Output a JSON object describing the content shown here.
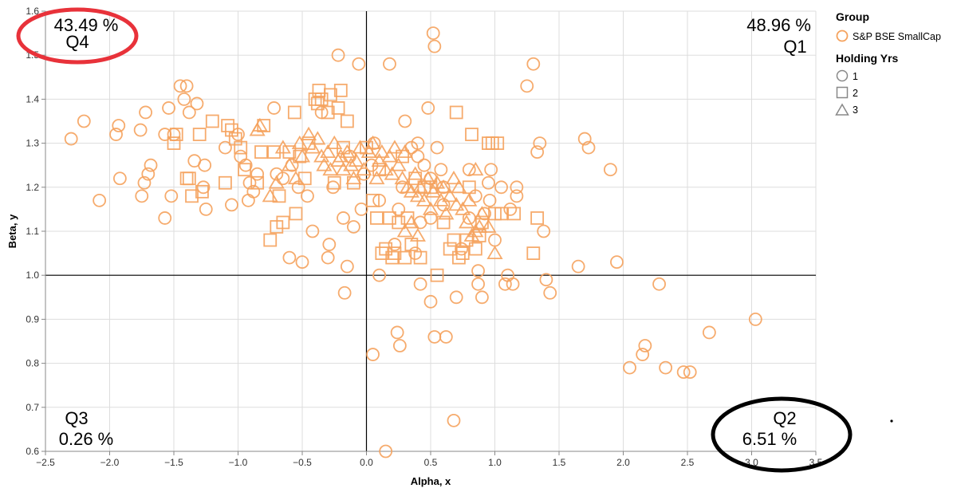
{
  "chart_data": {
    "type": "scatter",
    "title": "",
    "xlabel": "Alpha, x",
    "ylabel": "Beta, y",
    "xlim": [
      -2.5,
      3.5
    ],
    "ylim": [
      0.6,
      1.6
    ],
    "xticks": [
      "−2.5",
      "−2.0",
      "−1.5",
      "−1.0",
      "−0.5",
      "0.0",
      "0.5",
      "1.0",
      "1.5",
      "2.0",
      "2.5",
      "3.0",
      "3.5"
    ],
    "xtick_values": [
      -2.5,
      -2.0,
      -1.5,
      -1.0,
      -0.5,
      0.0,
      0.5,
      1.0,
      1.5,
      2.0,
      2.5,
      3.0,
      3.5
    ],
    "yticks": [
      "0.6",
      "0.7",
      "0.8",
      "0.9",
      "1.0",
      "1.1",
      "1.2",
      "1.3",
      "1.4",
      "1.5",
      "1.6"
    ],
    "ytick_values": [
      0.6,
      0.7,
      0.8,
      0.9,
      1.0,
      1.1,
      1.2,
      1.3,
      1.4,
      1.5,
      1.6
    ],
    "grid": true,
    "reference_lines": {
      "x": 0,
      "y": 1.0
    },
    "marker_color": "#f5a25d",
    "legend": {
      "placement": "right",
      "group_title": "Group",
      "group_items": [
        {
          "label": "S&P BSE SmallCap",
          "shape": "circle"
        }
      ],
      "holding_title": "Holding Yrs",
      "holding_items": [
        {
          "label": "1",
          "shape": "circle"
        },
        {
          "label": "2",
          "shape": "square"
        },
        {
          "label": "3",
          "shape": "triangle"
        }
      ]
    },
    "annotations": [
      {
        "quadrant": "Q1",
        "label": "Q1",
        "value": "48.96 %"
      },
      {
        "quadrant": "Q2",
        "label": "Q2",
        "value": "6.51 %"
      },
      {
        "quadrant": "Q3",
        "label": "Q3",
        "value": "0.26 %"
      },
      {
        "quadrant": "Q4",
        "label": "Q4",
        "value": "43.49 %"
      }
    ],
    "highlight_ellipses": [
      {
        "quadrant": "Q4",
        "color": "#e8323a"
      },
      {
        "quadrant": "Q2",
        "color": "#000000"
      }
    ],
    "series": [
      {
        "holding_yrs": "1",
        "shape": "circle",
        "points": [
          [
            -2.3,
            1.31
          ],
          [
            -2.2,
            1.35
          ],
          [
            -2.08,
            1.17
          ],
          [
            -1.95,
            1.32
          ],
          [
            -1.93,
            1.34
          ],
          [
            -1.92,
            1.22
          ],
          [
            -1.76,
            1.33
          ],
          [
            -1.75,
            1.18
          ],
          [
            -1.73,
            1.21
          ],
          [
            -1.72,
            1.37
          ],
          [
            -1.7,
            1.23
          ],
          [
            -1.68,
            1.25
          ],
          [
            -1.57,
            1.13
          ],
          [
            -1.57,
            1.32
          ],
          [
            -1.54,
            1.38
          ],
          [
            -1.52,
            1.18
          ],
          [
            -1.5,
            1.32
          ],
          [
            -1.45,
            1.43
          ],
          [
            -1.42,
            1.4
          ],
          [
            -1.4,
            1.43
          ],
          [
            -1.38,
            1.37
          ],
          [
            -1.34,
            1.26
          ],
          [
            -1.32,
            1.39
          ],
          [
            -1.27,
            1.2
          ],
          [
            -1.26,
            1.25
          ],
          [
            -1.25,
            1.15
          ],
          [
            -1.1,
            1.29
          ],
          [
            -1.05,
            1.16
          ],
          [
            -1.0,
            1.32
          ],
          [
            -0.98,
            1.27
          ],
          [
            -0.94,
            1.25
          ],
          [
            -0.92,
            1.17
          ],
          [
            -0.91,
            1.21
          ],
          [
            -0.88,
            1.19
          ],
          [
            -0.85,
            1.23
          ],
          [
            -0.72,
            1.38
          ],
          [
            -0.7,
            1.23
          ],
          [
            -0.65,
            1.22
          ],
          [
            -0.6,
            1.04
          ],
          [
            -0.58,
            1.25
          ],
          [
            -0.53,
            1.2
          ],
          [
            -0.5,
            1.03
          ],
          [
            -0.46,
            1.18
          ],
          [
            -0.42,
            1.1
          ],
          [
            -0.35,
            1.37
          ],
          [
            -0.3,
            1.04
          ],
          [
            -0.29,
            1.07
          ],
          [
            -0.26,
            1.2
          ],
          [
            -0.22,
            1.5
          ],
          [
            -0.18,
            1.13
          ],
          [
            -0.17,
            0.96
          ],
          [
            -0.15,
            1.02
          ],
          [
            -0.13,
            1.27
          ],
          [
            -0.1,
            1.11
          ],
          [
            -0.06,
            1.48
          ],
          [
            -0.04,
            1.15
          ],
          [
            -0.02,
            1.23
          ],
          [
            0.04,
            1.25
          ],
          [
            0.05,
            0.82
          ],
          [
            0.06,
            1.3
          ],
          [
            0.1,
            1.17
          ],
          [
            0.1,
            1.0
          ],
          [
            0.15,
            0.6
          ],
          [
            0.18,
            1.48
          ],
          [
            0.22,
            1.07
          ],
          [
            0.24,
            0.87
          ],
          [
            0.25,
            1.15
          ],
          [
            0.26,
            0.84
          ],
          [
            0.28,
            1.2
          ],
          [
            0.3,
            1.35
          ],
          [
            0.35,
            1.29
          ],
          [
            0.38,
            1.05
          ],
          [
            0.4,
            1.27
          ],
          [
            0.4,
            1.3
          ],
          [
            0.42,
            1.12
          ],
          [
            0.42,
            0.98
          ],
          [
            0.45,
            1.25
          ],
          [
            0.48,
            1.38
          ],
          [
            0.5,
            1.13
          ],
          [
            0.5,
            1.22
          ],
          [
            0.5,
            0.94
          ],
          [
            0.52,
            1.55
          ],
          [
            0.53,
            1.52
          ],
          [
            0.53,
            0.86
          ],
          [
            0.55,
            1.29
          ],
          [
            0.58,
            1.24
          ],
          [
            0.6,
            1.2
          ],
          [
            0.6,
            1.16
          ],
          [
            0.62,
            0.86
          ],
          [
            0.68,
            0.67
          ],
          [
            0.7,
            0.95
          ],
          [
            0.74,
            1.06
          ],
          [
            0.8,
            1.13
          ],
          [
            0.8,
            1.24
          ],
          [
            0.85,
            1.18
          ],
          [
            0.87,
            1.01
          ],
          [
            0.87,
            0.98
          ],
          [
            0.9,
            0.95
          ],
          [
            0.92,
            1.14
          ],
          [
            0.95,
            1.21
          ],
          [
            0.96,
            1.17
          ],
          [
            0.97,
            1.24
          ],
          [
            1.0,
            1.08
          ],
          [
            1.05,
            1.2
          ],
          [
            1.08,
            0.98
          ],
          [
            1.1,
            1.0
          ],
          [
            1.12,
            1.15
          ],
          [
            1.14,
            0.98
          ],
          [
            1.17,
            1.18
          ],
          [
            1.17,
            1.2
          ],
          [
            1.25,
            1.43
          ],
          [
            1.3,
            1.48
          ],
          [
            1.33,
            1.28
          ],
          [
            1.35,
            1.3
          ],
          [
            1.38,
            1.1
          ],
          [
            1.4,
            0.99
          ],
          [
            1.43,
            0.96
          ],
          [
            1.65,
            1.02
          ],
          [
            1.7,
            1.31
          ],
          [
            1.73,
            1.29
          ],
          [
            1.9,
            1.24
          ],
          [
            1.95,
            1.03
          ],
          [
            2.05,
            0.79
          ],
          [
            2.15,
            0.82
          ],
          [
            2.17,
            0.84
          ],
          [
            2.28,
            0.98
          ],
          [
            2.33,
            0.79
          ],
          [
            2.47,
            0.78
          ],
          [
            2.52,
            0.78
          ],
          [
            2.67,
            0.87
          ],
          [
            3.03,
            0.9
          ]
        ]
      },
      {
        "holding_yrs": "2",
        "shape": "square",
        "points": [
          [
            -1.5,
            1.3
          ],
          [
            -1.48,
            1.32
          ],
          [
            -1.4,
            1.22
          ],
          [
            -1.38,
            1.22
          ],
          [
            -1.36,
            1.18
          ],
          [
            -1.3,
            1.32
          ],
          [
            -1.28,
            1.19
          ],
          [
            -1.2,
            1.35
          ],
          [
            -1.1,
            1.21
          ],
          [
            -1.08,
            1.34
          ],
          [
            -1.05,
            1.33
          ],
          [
            -1.02,
            1.31
          ],
          [
            -0.98,
            1.29
          ],
          [
            -0.95,
            1.24
          ],
          [
            -0.85,
            1.21
          ],
          [
            -0.82,
            1.28
          ],
          [
            -0.8,
            1.34
          ],
          [
            -0.75,
            1.08
          ],
          [
            -0.72,
            1.28
          ],
          [
            -0.7,
            1.11
          ],
          [
            -0.68,
            1.18
          ],
          [
            -0.65,
            1.12
          ],
          [
            -0.6,
            1.28
          ],
          [
            -0.56,
            1.37
          ],
          [
            -0.55,
            1.14
          ],
          [
            -0.52,
            1.27
          ],
          [
            -0.48,
            1.22
          ],
          [
            -0.45,
            1.3
          ],
          [
            -0.4,
            1.4
          ],
          [
            -0.38,
            1.39
          ],
          [
            -0.37,
            1.42
          ],
          [
            -0.35,
            1.4
          ],
          [
            -0.3,
            1.37
          ],
          [
            -0.28,
            1.41
          ],
          [
            -0.25,
            1.21
          ],
          [
            -0.22,
            1.38
          ],
          [
            -0.2,
            1.42
          ],
          [
            -0.18,
            1.29
          ],
          [
            -0.15,
            1.35
          ],
          [
            -0.1,
            1.21
          ],
          [
            0.0,
            1.29
          ],
          [
            0.05,
            1.17
          ],
          [
            0.08,
            1.13
          ],
          [
            0.1,
            1.24
          ],
          [
            0.12,
            1.05
          ],
          [
            0.15,
            1.06
          ],
          [
            0.18,
            1.13
          ],
          [
            0.2,
            1.04
          ],
          [
            0.22,
            1.05
          ],
          [
            0.25,
            1.12
          ],
          [
            0.28,
            1.27
          ],
          [
            0.3,
            1.04
          ],
          [
            0.32,
            1.13
          ],
          [
            0.35,
            1.07
          ],
          [
            0.38,
            1.22
          ],
          [
            0.42,
            1.04
          ],
          [
            0.45,
            1.2
          ],
          [
            0.5,
            1.2
          ],
          [
            0.55,
            1.0
          ],
          [
            0.6,
            1.12
          ],
          [
            0.65,
            1.06
          ],
          [
            0.68,
            1.08
          ],
          [
            0.72,
            1.04
          ],
          [
            0.75,
            1.05
          ],
          [
            0.78,
            1.08
          ],
          [
            0.8,
            1.2
          ],
          [
            0.82,
            1.32
          ],
          [
            0.85,
            1.06
          ],
          [
            0.88,
            1.09
          ],
          [
            0.9,
            1.12
          ],
          [
            0.95,
            1.3
          ],
          [
            0.98,
            1.3
          ],
          [
            1.0,
            1.14
          ],
          [
            1.02,
            1.3
          ],
          [
            1.05,
            1.14
          ],
          [
            1.15,
            1.14
          ],
          [
            1.3,
            1.05
          ],
          [
            1.33,
            1.13
          ],
          [
            0.7,
            1.37
          ]
        ]
      },
      {
        "holding_yrs": "3",
        "shape": "triangle",
        "points": [
          [
            -0.85,
            1.33
          ],
          [
            -0.83,
            1.34
          ],
          [
            -0.75,
            1.18
          ],
          [
            -0.7,
            1.21
          ],
          [
            -0.65,
            1.29
          ],
          [
            -0.6,
            1.25
          ],
          [
            -0.55,
            1.22
          ],
          [
            -0.52,
            1.3
          ],
          [
            -0.5,
            1.27
          ],
          [
            -0.45,
            1.32
          ],
          [
            -0.42,
            1.29
          ],
          [
            -0.38,
            1.31
          ],
          [
            -0.35,
            1.27
          ],
          [
            -0.33,
            1.25
          ],
          [
            -0.3,
            1.28
          ],
          [
            -0.28,
            1.24
          ],
          [
            -0.25,
            1.3
          ],
          [
            -0.22,
            1.26
          ],
          [
            -0.2,
            1.27
          ],
          [
            -0.18,
            1.24
          ],
          [
            -0.15,
            1.28
          ],
          [
            -0.12,
            1.25
          ],
          [
            -0.1,
            1.22
          ],
          [
            -0.08,
            1.26
          ],
          [
            -0.05,
            1.29
          ],
          [
            -0.02,
            1.24
          ],
          [
            0.02,
            1.28
          ],
          [
            0.05,
            1.3
          ],
          [
            0.08,
            1.22
          ],
          [
            0.1,
            1.26
          ],
          [
            0.12,
            1.28
          ],
          [
            0.15,
            1.24
          ],
          [
            0.18,
            1.27
          ],
          [
            0.2,
            1.23
          ],
          [
            0.22,
            1.29
          ],
          [
            0.25,
            1.25
          ],
          [
            0.28,
            1.22
          ],
          [
            0.3,
            1.28
          ],
          [
            0.32,
            1.2
          ],
          [
            0.35,
            1.19
          ],
          [
            0.38,
            1.23
          ],
          [
            0.4,
            1.18
          ],
          [
            0.42,
            1.2
          ],
          [
            0.45,
            1.17
          ],
          [
            0.48,
            1.22
          ],
          [
            0.5,
            1.15
          ],
          [
            0.52,
            1.19
          ],
          [
            0.55,
            1.21
          ],
          [
            0.58,
            1.17
          ],
          [
            0.6,
            1.2
          ],
          [
            0.62,
            1.14
          ],
          [
            0.65,
            1.18
          ],
          [
            0.68,
            1.22
          ],
          [
            0.7,
            1.16
          ],
          [
            0.72,
            1.2
          ],
          [
            0.75,
            1.15
          ],
          [
            0.78,
            1.12
          ],
          [
            0.8,
            1.17
          ],
          [
            0.82,
            1.09
          ],
          [
            0.85,
            1.1
          ],
          [
            0.88,
            1.11
          ],
          [
            0.9,
            1.14
          ],
          [
            0.95,
            1.11
          ],
          [
            1.0,
            1.05
          ],
          [
            0.85,
            1.24
          ],
          [
            0.3,
            1.1
          ],
          [
            0.35,
            1.12
          ],
          [
            0.4,
            1.09
          ]
        ]
      }
    ]
  }
}
